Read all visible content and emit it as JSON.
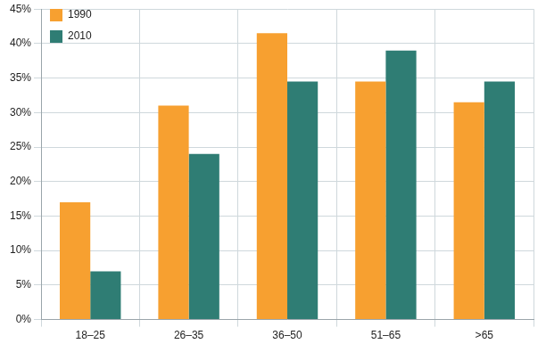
{
  "chart_data": {
    "type": "bar",
    "categories": [
      "18–25",
      "26–35",
      "36–50",
      "51–65",
      ">65"
    ],
    "series": [
      {
        "name": "1990",
        "color": "#f7a030",
        "values": [
          17,
          31,
          41.5,
          34.5,
          31.5
        ]
      },
      {
        "name": "2010",
        "color": "#2f7d74",
        "values": [
          7,
          24,
          34.5,
          39,
          34.5
        ]
      }
    ],
    "ylim": [
      0,
      45
    ],
    "yticks": [
      {
        "value": 0,
        "label": "0%"
      },
      {
        "value": 5,
        "label": "5%"
      },
      {
        "value": 10,
        "label": "10%"
      },
      {
        "value": 15,
        "label": "15%"
      },
      {
        "value": 20,
        "label": "20%"
      },
      {
        "value": 25,
        "label": "25%"
      },
      {
        "value": 30,
        "label": "30%"
      },
      {
        "value": 35,
        "label": "35%"
      },
      {
        "value": 40,
        "label": "40%"
      },
      {
        "value": 45,
        "label": "45%"
      }
    ],
    "grid": true,
    "legend": "top-left"
  }
}
